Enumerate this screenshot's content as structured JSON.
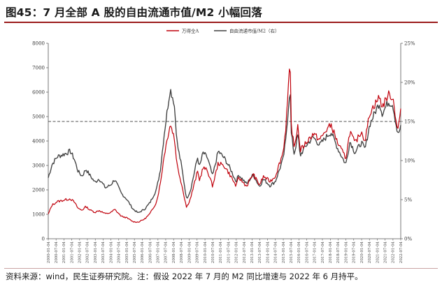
{
  "figure": {
    "title": "图45：7 月全部 A 股的自由流通市值/M2 小幅回落",
    "source": "资料来源：wind，民生证券研究院。注：假设 2022 年 7 月的 M2 同比增速与 2022 年 6 月持平。"
  },
  "colors": {
    "series_a": "#c0000b",
    "series_b": "#404040",
    "ref_line": "#555555",
    "accent": "#9b1b1b"
  },
  "chart_data": {
    "type": "line",
    "legend": {
      "position": "top-center",
      "entries": [
        "万得全A",
        "自由流通市值/M2（右）"
      ]
    },
    "y_left": {
      "range": [
        0,
        8000
      ],
      "ticks": [
        "0",
        "1000",
        "2000",
        "3000",
        "4000",
        "5000",
        "6000",
        "7000",
        "8000"
      ]
    },
    "y_right": {
      "range": [
        0,
        25
      ],
      "ticks": [
        "0%",
        "5%",
        "10%",
        "15%",
        "20%",
        "25%"
      ]
    },
    "x_range": [
      "2000-01-04",
      "2022-07-04"
    ],
    "x_ticks": [
      "2000-01-04",
      "2000-07-04",
      "2001-01-04",
      "2001-07-04",
      "2002-01-04",
      "2002-07-04",
      "2003-01-04",
      "2003-07-04",
      "2004-01-04",
      "2004-07-04",
      "2005-01-04",
      "2005-07-04",
      "2006-01-04",
      "2006-07-04",
      "2007-01-04",
      "2007-07-04",
      "2008-01-04",
      "2008-07-04",
      "2009-01-04",
      "2009-07-04",
      "2010-01-04",
      "2010-07-04",
      "2011-01-04",
      "2011-07-04",
      "2012-01-04",
      "2012-07-04",
      "2013-01-04",
      "2013-07-04",
      "2014-01-04",
      "2014-07-04",
      "2015-01-04",
      "2015-07-04",
      "2016-01-04",
      "2016-07-04",
      "2017-01-04",
      "2017-07-04",
      "2018-01-04",
      "2018-07-04",
      "2019-01-04",
      "2019-07-04",
      "2020-01-04",
      "2020-07-04",
      "2021-01-04",
      "2021-07-04",
      "2022-01-04",
      "2022-07-04"
    ],
    "reference_line": {
      "axis": "right",
      "value": 15,
      "style": "dashed"
    },
    "series": [
      {
        "name": "万得全A",
        "axis": "left",
        "points": [
          [
            "2000-01-04",
            1000
          ],
          [
            "2000-04-01",
            1380
          ],
          [
            "2000-08-01",
            1520
          ],
          [
            "2001-01-01",
            1580
          ],
          [
            "2001-06-01",
            1640
          ],
          [
            "2001-09-01",
            1500
          ],
          [
            "2001-12-01",
            1240
          ],
          [
            "2002-03-01",
            1170
          ],
          [
            "2002-06-01",
            1320
          ],
          [
            "2002-09-01",
            1180
          ],
          [
            "2003-01-01",
            1080
          ],
          [
            "2003-04-01",
            1160
          ],
          [
            "2003-09-01",
            1020
          ],
          [
            "2004-01-01",
            1070
          ],
          [
            "2004-04-01",
            1200
          ],
          [
            "2004-09-01",
            920
          ],
          [
            "2005-01-01",
            860
          ],
          [
            "2005-06-01",
            700
          ],
          [
            "2005-10-01",
            680
          ],
          [
            "2006-03-01",
            810
          ],
          [
            "2006-07-01",
            1020
          ],
          [
            "2006-12-01",
            1500
          ],
          [
            "2007-03-01",
            2250
          ],
          [
            "2007-06-01",
            3450
          ],
          [
            "2007-10-15",
            4700
          ],
          [
            "2008-01-15",
            4200
          ],
          [
            "2008-04-01",
            2950
          ],
          [
            "2008-07-01",
            2300
          ],
          [
            "2008-11-01",
            1280
          ],
          [
            "2009-02-01",
            1650
          ],
          [
            "2009-07-15",
            2750
          ],
          [
            "2009-09-01",
            2400
          ],
          [
            "2009-11-20",
            2900
          ],
          [
            "2010-03-01",
            2800
          ],
          [
            "2010-07-01",
            2150
          ],
          [
            "2010-11-10",
            3100
          ],
          [
            "2011-04-15",
            2950
          ],
          [
            "2011-09-01",
            2550
          ],
          [
            "2011-12-31",
            2150
          ],
          [
            "2012-03-01",
            2500
          ],
          [
            "2012-09-01",
            2150
          ],
          [
            "2013-02-01",
            2650
          ],
          [
            "2013-06-25",
            2200
          ],
          [
            "2013-10-01",
            2550
          ],
          [
            "2014-03-01",
            2350
          ],
          [
            "2014-07-01",
            2550
          ],
          [
            "2014-12-31",
            3550
          ],
          [
            "2015-03-01",
            4500
          ],
          [
            "2015-06-12",
            7200
          ],
          [
            "2015-07-08",
            4700
          ],
          [
            "2015-09-15",
            3700
          ],
          [
            "2015-12-15",
            4700
          ],
          [
            "2016-01-28",
            3600
          ],
          [
            "2016-06-01",
            3900
          ],
          [
            "2016-12-01",
            4300
          ],
          [
            "2017-05-01",
            4050
          ],
          [
            "2017-11-15",
            4550
          ],
          [
            "2018-01-25",
            4650
          ],
          [
            "2018-06-30",
            3900
          ],
          [
            "2018-12-31",
            3300
          ],
          [
            "2019-04-08",
            4400
          ],
          [
            "2019-08-01",
            3900
          ],
          [
            "2019-12-31",
            4400
          ],
          [
            "2020-03-23",
            4000
          ],
          [
            "2020-07-10",
            5150
          ],
          [
            "2021-02-18",
            5800
          ],
          [
            "2021-05-01",
            5400
          ],
          [
            "2021-09-15",
            5900
          ],
          [
            "2021-12-31",
            5800
          ],
          [
            "2022-04-26",
            4400
          ],
          [
            "2022-07-04",
            5300
          ]
        ]
      },
      {
        "name": "自由流通市值/M2（右）",
        "axis": "right",
        "points": [
          [
            "2000-01-04",
            7.8
          ],
          [
            "2000-04-01",
            9.5
          ],
          [
            "2000-08-01",
            10.5
          ],
          [
            "2001-01-01",
            10.8
          ],
          [
            "2001-06-01",
            11.2
          ],
          [
            "2001-09-01",
            10.2
          ],
          [
            "2001-12-01",
            8.6
          ],
          [
            "2002-03-01",
            8.0
          ],
          [
            "2002-06-01",
            8.9
          ],
          [
            "2002-09-01",
            8.1
          ],
          [
            "2003-01-01",
            7.2
          ],
          [
            "2003-04-01",
            7.7
          ],
          [
            "2003-09-01",
            6.5
          ],
          [
            "2004-01-01",
            6.9
          ],
          [
            "2004-04-01",
            7.6
          ],
          [
            "2004-09-01",
            5.8
          ],
          [
            "2005-01-01",
            5.1
          ],
          [
            "2005-06-01",
            3.8
          ],
          [
            "2005-10-01",
            3.3
          ],
          [
            "2006-03-01",
            3.8
          ],
          [
            "2006-07-01",
            4.6
          ],
          [
            "2006-12-01",
            6.3
          ],
          [
            "2007-03-01",
            8.8
          ],
          [
            "2007-06-01",
            13.5
          ],
          [
            "2007-10-15",
            19.2
          ],
          [
            "2008-01-15",
            17.5
          ],
          [
            "2008-04-01",
            12.0
          ],
          [
            "2008-07-01",
            9.5
          ],
          [
            "2008-11-01",
            5.1
          ],
          [
            "2009-02-01",
            6.2
          ],
          [
            "2009-07-15",
            10.4
          ],
          [
            "2009-09-01",
            9.2
          ],
          [
            "2009-11-20",
            11.0
          ],
          [
            "2010-03-01",
            10.4
          ],
          [
            "2010-07-01",
            8.0
          ],
          [
            "2010-11-10",
            11.2
          ],
          [
            "2011-04-15",
            10.2
          ],
          [
            "2011-09-01",
            8.8
          ],
          [
            "2011-12-31",
            7.3
          ],
          [
            "2012-03-01",
            8.2
          ],
          [
            "2012-09-01",
            7.0
          ],
          [
            "2013-02-01",
            8.2
          ],
          [
            "2013-06-25",
            6.7
          ],
          [
            "2013-10-01",
            7.6
          ],
          [
            "2014-03-01",
            6.8
          ],
          [
            "2014-07-01",
            7.3
          ],
          [
            "2014-12-31",
            10.2
          ],
          [
            "2015-03-01",
            12.5
          ],
          [
            "2015-06-12",
            19.5
          ],
          [
            "2015-07-08",
            13.5
          ],
          [
            "2015-09-15",
            10.8
          ],
          [
            "2015-12-15",
            13.4
          ],
          [
            "2016-01-28",
            10.6
          ],
          [
            "2016-06-01",
            11.8
          ],
          [
            "2016-12-01",
            13.0
          ],
          [
            "2017-05-01",
            12.0
          ],
          [
            "2017-11-15",
            13.3
          ],
          [
            "2018-01-25",
            13.6
          ],
          [
            "2018-06-30",
            11.5
          ],
          [
            "2018-12-31",
            9.5
          ],
          [
            "2019-04-08",
            12.5
          ],
          [
            "2019-08-01",
            11.0
          ],
          [
            "2019-12-31",
            12.3
          ],
          [
            "2020-03-23",
            11.4
          ],
          [
            "2020-07-10",
            14.6
          ],
          [
            "2021-02-18",
            17.4
          ],
          [
            "2021-05-01",
            16.0
          ],
          [
            "2021-09-15",
            17.5
          ],
          [
            "2021-12-31",
            17.2
          ],
          [
            "2022-04-26",
            13.3
          ],
          [
            "2022-07-04",
            14.2
          ]
        ]
      }
    ]
  }
}
